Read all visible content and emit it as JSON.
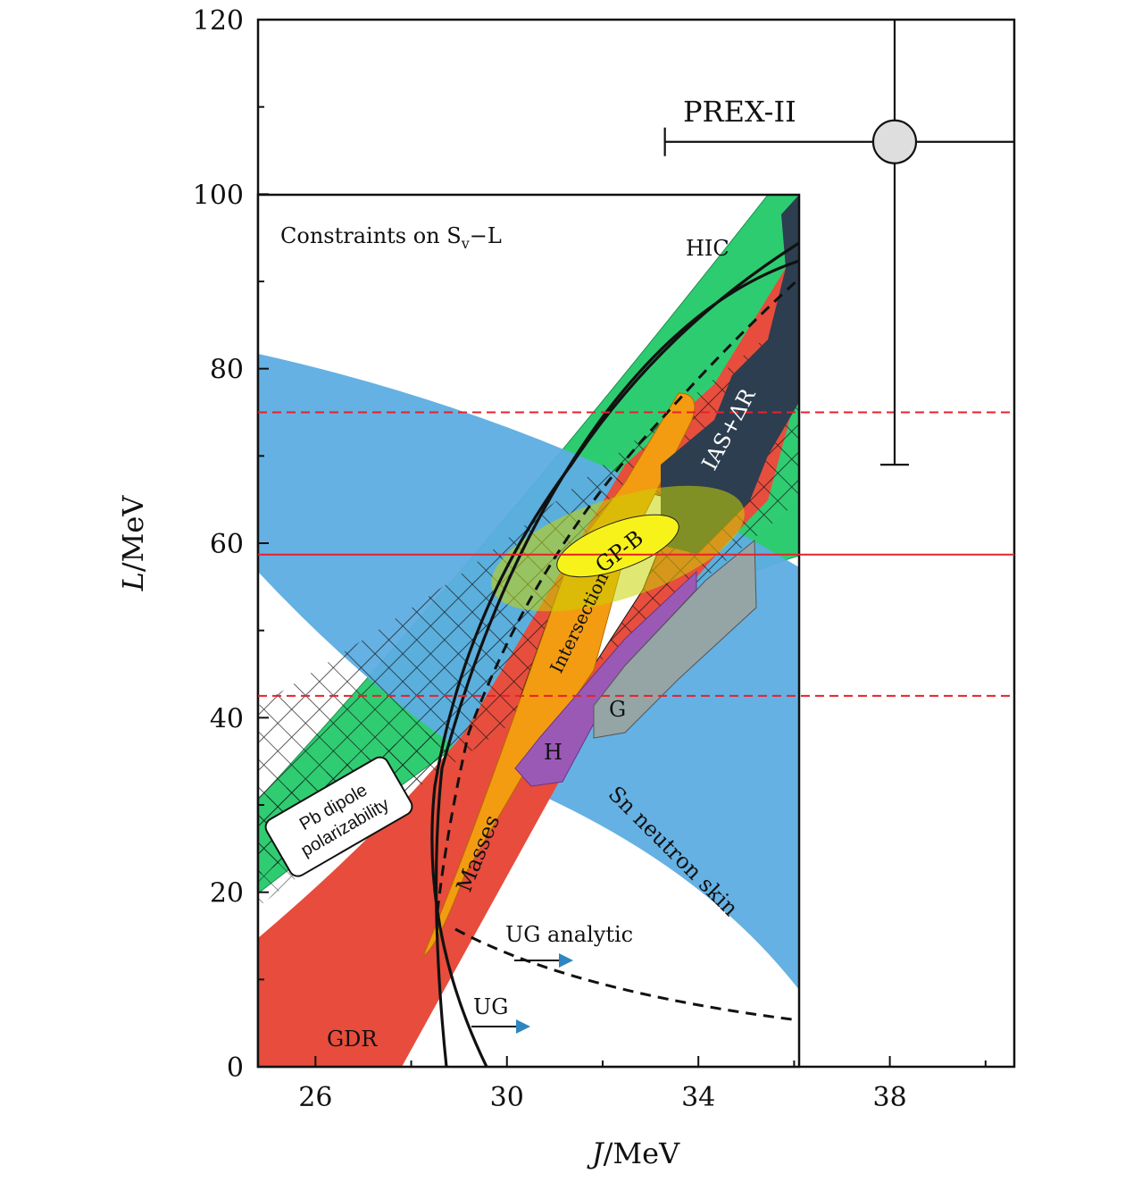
{
  "chart_data": {
    "type": "scatter",
    "xlabel": "J/MeV",
    "ylabel": "L/MeV",
    "xlim": [
      24.8,
      40.6
    ],
    "ylim": [
      0,
      120
    ],
    "x_ticks": [
      26,
      30,
      34,
      38
    ],
    "x_tick_labels": [
      "26",
      "30",
      "34",
      "38"
    ],
    "y_ticks": [
      0,
      20,
      40,
      60,
      80,
      100,
      120
    ],
    "y_tick_labels": [
      "0",
      "20",
      "40",
      "60",
      "80",
      "100",
      "120"
    ],
    "inset": {
      "title": "Constraints on S",
      "title_sub": "v",
      "title_suffix": "−L",
      "xlim": [
        24.8,
        36.1
      ],
      "ylim": [
        0,
        100
      ]
    },
    "point": {
      "label": "PREX-II",
      "x": 38.1,
      "y": 106,
      "x_err_low": 33.3,
      "x_err_high": 40.6,
      "y_err_low": 69,
      "y_err_high": 120
    },
    "reference_lines": [
      {
        "y": 58.7,
        "style": "solid",
        "color": "#e8202a"
      },
      {
        "y": 75,
        "style": "dashed",
        "color": "#e8202a"
      },
      {
        "y": 42.5,
        "style": "dashed",
        "color": "#e8202a"
      }
    ],
    "region_labels": [
      {
        "key": "hic",
        "text": "HIC"
      },
      {
        "key": "ias",
        "text": "IAS+ΔR"
      },
      {
        "key": "gpb",
        "text": "GP-B"
      },
      {
        "key": "intersection",
        "text": "Intersection"
      },
      {
        "key": "masses",
        "text": "Masses"
      },
      {
        "key": "g",
        "text": "G"
      },
      {
        "key": "h",
        "text": "H"
      },
      {
        "key": "sn",
        "text": "Sn neutron skin"
      },
      {
        "key": "pb1",
        "text": "Pb dipole"
      },
      {
        "key": "pb2",
        "text": "polarizability"
      },
      {
        "key": "uga",
        "text": "UG analytic"
      },
      {
        "key": "ug",
        "text": "UG"
      },
      {
        "key": "gdr",
        "text": "GDR"
      }
    ]
  },
  "colors": {
    "green": "#2ecc71",
    "blue": "#5dade2",
    "red": "#e74c3c",
    "orange": "#f39c12",
    "purple": "#9b59b6",
    "gray": "#95a5a6",
    "navy": "#2c3e50",
    "yellow": "#f7f31a",
    "marker": "#dedede"
  }
}
